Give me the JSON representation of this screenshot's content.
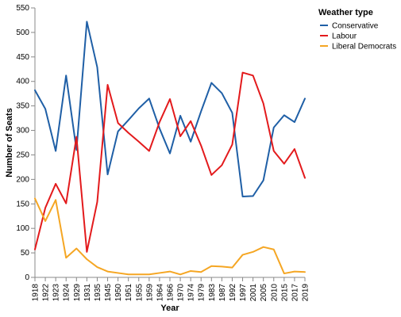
{
  "chart_data": {
    "type": "line",
    "xlabel": "Year",
    "ylabel": "Number of Seats",
    "ylim": [
      0,
      550
    ],
    "y_ticks": [
      0,
      50,
      100,
      150,
      200,
      250,
      300,
      350,
      400,
      450,
      500,
      550
    ],
    "grid": false,
    "legend_position": "top-right",
    "legend_title": "Weather type",
    "categories": [
      "1918",
      "1922",
      "1923",
      "1924",
      "1929",
      "1931",
      "1935",
      "1945",
      "1950",
      "1951",
      "1955",
      "1959",
      "1964",
      "1966",
      "1970",
      "1974",
      "1979",
      "1983",
      "1987",
      "1992",
      "1997",
      "2001",
      "2005",
      "2010",
      "2015",
      "2017",
      "2019"
    ],
    "series": [
      {
        "name": "Conservative",
        "color": "#1f5fa6",
        "values": [
          382,
          344,
          258,
          412,
          260,
          522,
          429,
          210,
          298,
          321,
          345,
          365,
          304,
          253,
          330,
          277,
          339,
          397,
          376,
          336,
          165,
          166,
          198,
          306,
          331,
          317,
          365
        ]
      },
      {
        "name": "Labour",
        "color": "#e31a1c",
        "values": [
          57,
          142,
          191,
          151,
          287,
          52,
          154,
          393,
          315,
          295,
          277,
          258,
          317,
          364,
          288,
          319,
          269,
          209,
          229,
          271,
          418,
          412,
          355,
          258,
          232,
          262,
          203
        ]
      },
      {
        "name": "Liberal Democrats",
        "color": "#f5a623",
        "values": [
          161,
          115,
          158,
          40,
          59,
          37,
          21,
          12,
          9,
          6,
          6,
          6,
          9,
          12,
          6,
          13,
          11,
          23,
          22,
          20,
          46,
          52,
          62,
          57,
          8,
          12,
          11
        ]
      }
    ]
  }
}
